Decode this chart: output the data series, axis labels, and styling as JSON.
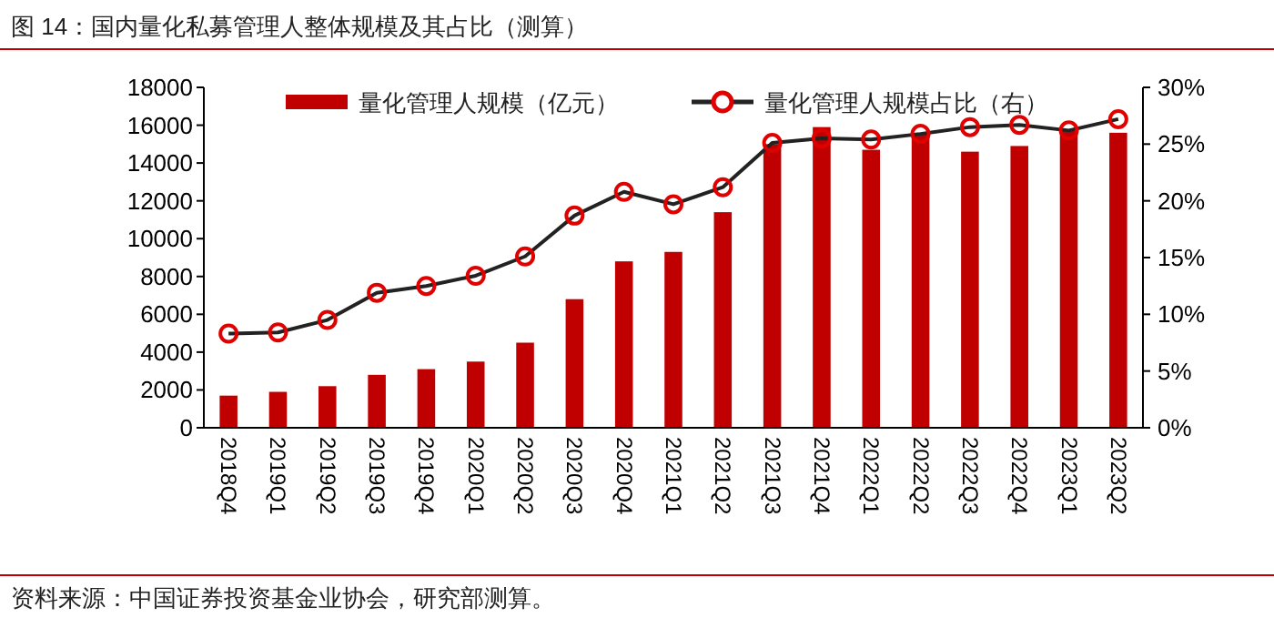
{
  "chart_data": {
    "type": "bar",
    "title": "图 14：国内量化私募管理人整体规模及其占比（测算）",
    "categories": [
      "2018Q4",
      "2019Q1",
      "2019Q2",
      "2019Q3",
      "2019Q4",
      "2020Q1",
      "2020Q2",
      "2020Q3",
      "2020Q4",
      "2021Q1",
      "2021Q2",
      "2021Q3",
      "2021Q4",
      "2022Q1",
      "2022Q2",
      "2022Q3",
      "2022Q4",
      "2023Q1",
      "2023Q2"
    ],
    "series": [
      {
        "name": "量化管理人规模（亿元）",
        "color": "#c00000",
        "values": [
          1700,
          1900,
          2200,
          2800,
          3100,
          3500,
          4500,
          6800,
          8800,
          9300,
          11400,
          15000,
          15900,
          14700,
          15600,
          14600,
          14900,
          15700,
          15600
        ]
      },
      {
        "name": "量化管理人规模占比（右）",
        "type": "line",
        "axis": "y2",
        "color": "#222222",
        "values": [
          8.3,
          8.4,
          9.5,
          11.9,
          12.5,
          13.4,
          15.1,
          18.7,
          20.8,
          19.7,
          21.2,
          25.1,
          25.5,
          25.4,
          25.9,
          26.5,
          26.7,
          26.2,
          27.2
        ]
      }
    ],
    "ylim": [
      0,
      18000
    ],
    "yticks": [
      0,
      2000,
      4000,
      6000,
      8000,
      10000,
      12000,
      14000,
      16000,
      18000
    ],
    "y2lim": [
      0,
      30
    ],
    "y2ticks": [
      {
        "value": 0,
        "label": "0%"
      },
      {
        "value": 5,
        "label": "5%"
      },
      {
        "value": 10,
        "label": "10%"
      },
      {
        "value": 15,
        "label": "15%"
      },
      {
        "value": 20,
        "label": "20%"
      },
      {
        "value": 25,
        "label": "25%"
      },
      {
        "value": 30,
        "label": "30%"
      }
    ],
    "marker": "circle",
    "legend": "top",
    "grid": false,
    "annotations": [
      "资料来源：中国证券投资基金业协会，研究部测算。"
    ]
  }
}
